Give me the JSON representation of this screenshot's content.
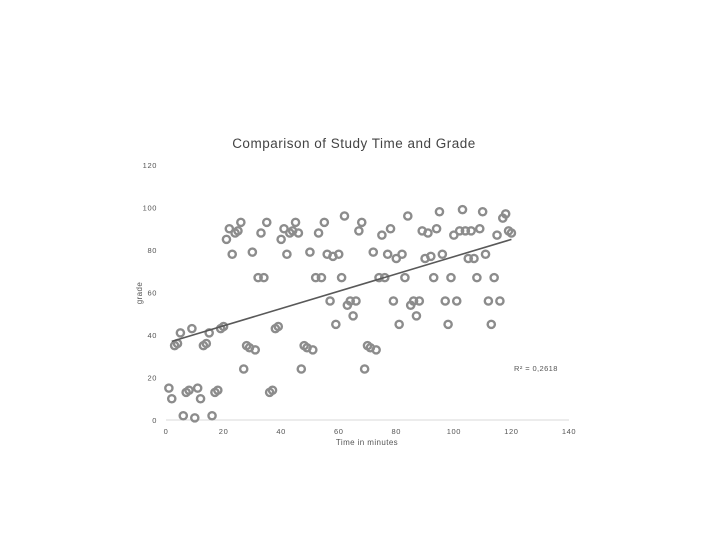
{
  "chart_data": {
    "type": "scatter",
    "title": "Comparison of Study Time and Grade",
    "xlabel": "Time in minutes",
    "ylabel": "grade",
    "xlim": [
      0,
      140
    ],
    "ylim": [
      0,
      120
    ],
    "xticks": [
      "0",
      "20",
      "40",
      "60",
      "80",
      "100",
      "120",
      "140"
    ],
    "yticks": [
      "0",
      "20",
      "40",
      "60",
      "80",
      "100",
      "120"
    ],
    "grid": false,
    "marker_color": "#8c8c8c",
    "trendline_color": "#595959",
    "trendline": {
      "type": "linear",
      "x": [
        2,
        120
      ],
      "y": [
        37,
        85
      ],
      "annotation": "R² = 0,2618"
    },
    "x": [
      1,
      2,
      3,
      4,
      5,
      6,
      7,
      8,
      9,
      10,
      11,
      12,
      13,
      14,
      15,
      16,
      17,
      18,
      19,
      20,
      21,
      22,
      23,
      24,
      25,
      26,
      27,
      28,
      29,
      30,
      31,
      32,
      33,
      34,
      35,
      36,
      37,
      38,
      39,
      40,
      41,
      42,
      43,
      44,
      45,
      46,
      47,
      48,
      49,
      50,
      51,
      52,
      53,
      54,
      55,
      56,
      57,
      58,
      59,
      60,
      61,
      62,
      63,
      64,
      65,
      66,
      67,
      68,
      69,
      70,
      71,
      72,
      73,
      74,
      75,
      76,
      77,
      78,
      79,
      80,
      81,
      82,
      83,
      84,
      85,
      86,
      87,
      88,
      89,
      90,
      91,
      92,
      93,
      94,
      95,
      96,
      97,
      98,
      99,
      100,
      101,
      102,
      103,
      104,
      105,
      106,
      107,
      108,
      109,
      110,
      111,
      112,
      113,
      114,
      115,
      116,
      117,
      118,
      119,
      120
    ],
    "y": [
      15,
      10,
      35,
      36,
      41,
      2,
      13,
      14,
      43,
      1,
      15,
      10,
      35,
      36,
      41,
      2,
      13,
      14,
      43,
      44,
      85,
      90,
      78,
      88,
      89,
      93,
      24,
      35,
      34,
      79,
      33,
      67,
      88,
      67,
      93,
      13,
      14,
      43,
      44,
      85,
      90,
      78,
      88,
      89,
      93,
      88,
      24,
      35,
      34,
      79,
      33,
      67,
      88,
      67,
      93,
      78,
      56,
      77,
      45,
      78,
      67,
      96,
      54,
      56,
      49,
      56,
      89,
      93,
      24,
      35,
      34,
      79,
      33,
      67,
      87,
      67,
      78,
      90,
      56,
      76,
      45,
      78,
      67,
      96,
      54,
      56,
      49,
      56,
      89,
      76,
      88,
      77,
      67,
      90,
      98,
      78,
      56,
      45,
      67,
      87,
      56,
      89,
      99,
      89,
      76,
      89,
      76,
      67,
      90,
      98,
      78,
      56,
      45,
      67,
      87,
      56,
      95,
      97,
      89,
      88
    ]
  }
}
